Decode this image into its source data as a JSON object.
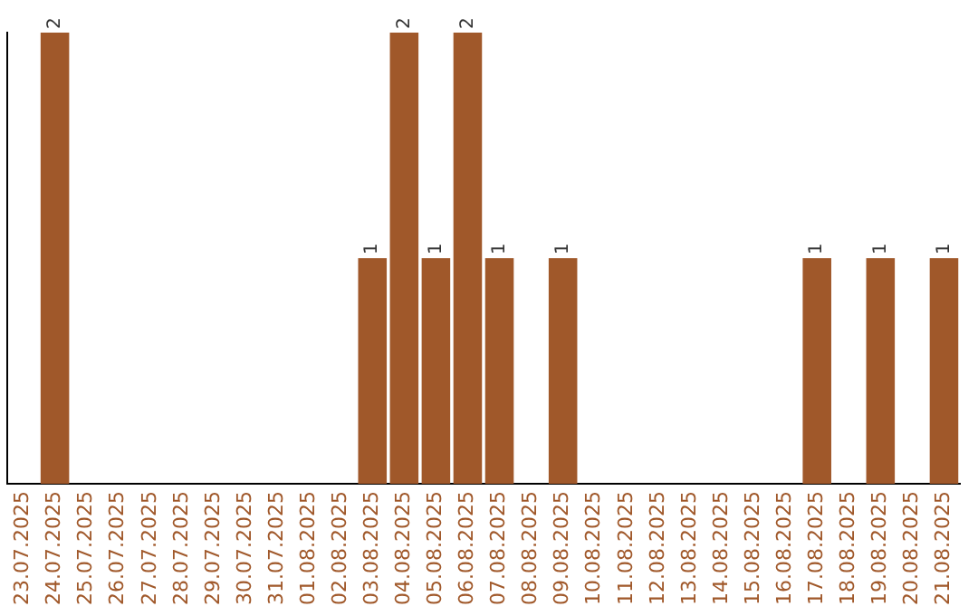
{
  "chart_data": {
    "type": "bar",
    "categories": [
      "23.07.2025",
      "24.07.2025",
      "25.07.2025",
      "26.07.2025",
      "27.07.2025",
      "28.07.2025",
      "29.07.2025",
      "30.07.2025",
      "31.07.2025",
      "01.08.2025",
      "02.08.2025",
      "03.08.2025",
      "04.08.2025",
      "05.08.2025",
      "06.08.2025",
      "07.08.2025",
      "08.08.2025",
      "09.08.2025",
      "10.08.2025",
      "11.08.2025",
      "12.08.2025",
      "13.08.2025",
      "14.08.2025",
      "15.08.2025",
      "16.08.2025",
      "17.08.2025",
      "18.08.2025",
      "19.08.2025",
      "20.08.2025",
      "21.08.2025"
    ],
    "values": [
      0,
      2,
      0,
      0,
      0,
      0,
      0,
      0,
      0,
      0,
      0,
      1,
      2,
      1,
      2,
      1,
      0,
      1,
      0,
      0,
      0,
      0,
      0,
      0,
      0,
      1,
      0,
      1,
      0,
      1
    ],
    "value_labels": [
      null,
      "2",
      null,
      null,
      null,
      null,
      null,
      null,
      null,
      null,
      null,
      "1",
      "2",
      "1",
      "2",
      "1",
      null,
      "1",
      null,
      null,
      null,
      null,
      null,
      null,
      null,
      "1",
      null,
      "1",
      null,
      "1"
    ],
    "color": "#a0582a",
    "grid": false,
    "legend": false,
    "tick_labels": "x"
  }
}
